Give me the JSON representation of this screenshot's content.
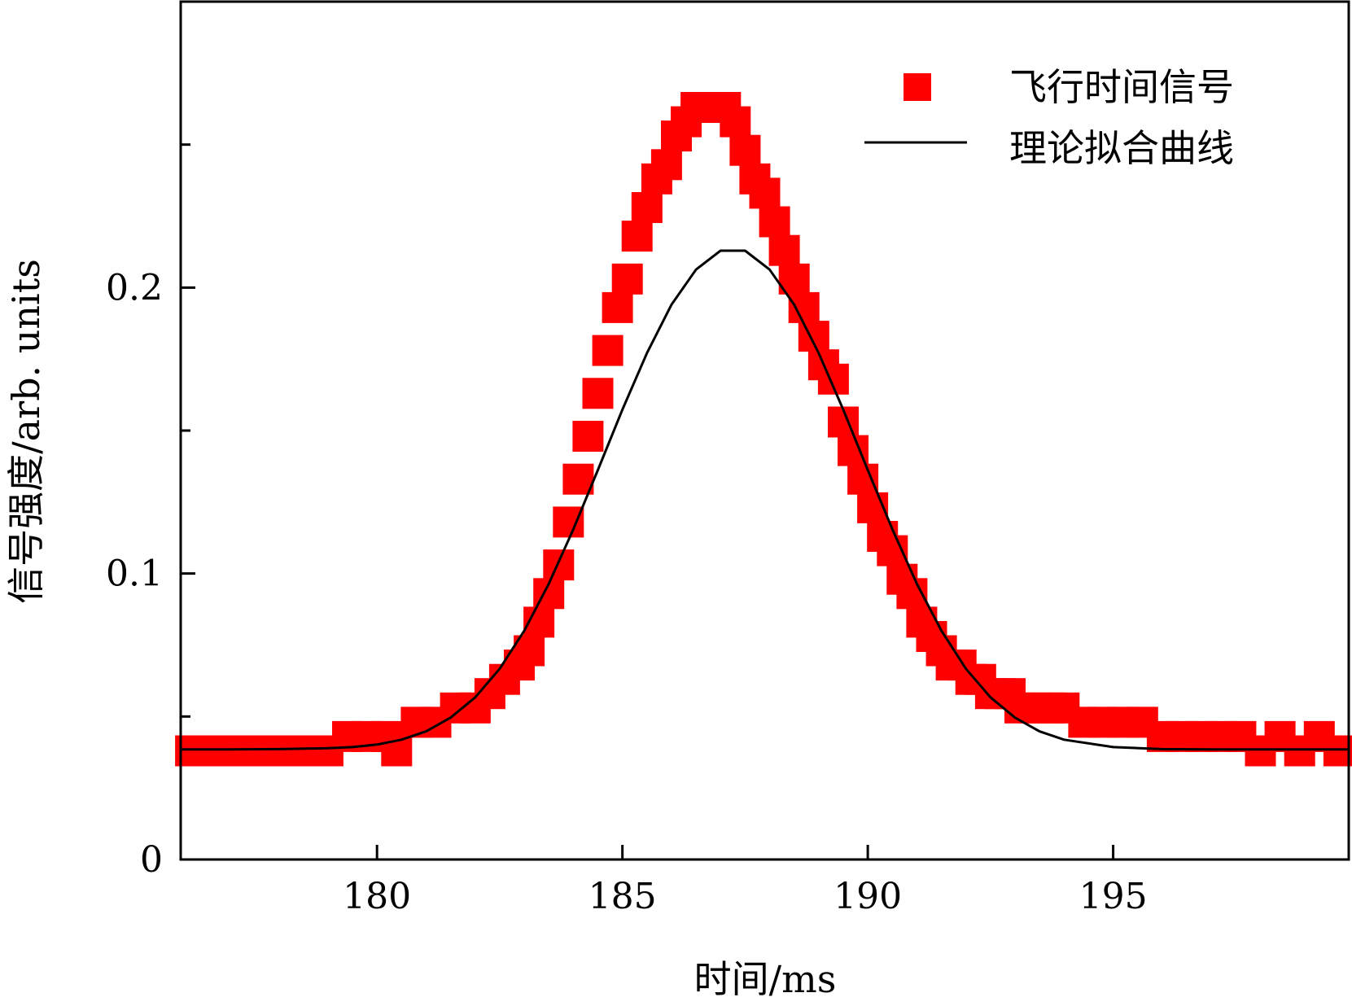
{
  "chart_data": {
    "type": "scatter",
    "xlabel": "时间/ms",
    "ylabel": "信号强度/arb. units",
    "xlim": [
      176,
      199.8
    ],
    "ylim": [
      0,
      0.3
    ],
    "xticks": [
      180,
      185,
      190,
      195
    ],
    "xtick_labels": [
      "180",
      "185",
      "190",
      "195"
    ],
    "x_minor_ticks": [],
    "yticks": [
      0,
      0.1,
      0.2
    ],
    "ytick_labels": [
      "0",
      "0.1",
      "0.2"
    ],
    "y_minor_ticks": [
      0.05,
      0.15,
      0.25
    ],
    "grid": false,
    "legend_position": "top-right",
    "colors": {
      "scatter": "#ff0000",
      "fit": "#000000",
      "frame": "#000000"
    },
    "series": [
      {
        "name": "飞行时间信号",
        "kind": "scatter",
        "marker": "square",
        "x": [
          176.2,
          176.6,
          177.0,
          177.4,
          177.8,
          178.2,
          178.6,
          179.0,
          179.4,
          179.8,
          180.2,
          180.4,
          180.8,
          181.2,
          181.6,
          182.0,
          182.3,
          182.6,
          182.9,
          183.1,
          183.3,
          183.5,
          183.7,
          183.9,
          184.1,
          184.3,
          184.5,
          184.7,
          184.9,
          185.1,
          185.3,
          185.5,
          185.7,
          185.9,
          186.1,
          186.3,
          186.5,
          186.7,
          186.9,
          187.1,
          187.3,
          187.5,
          187.7,
          187.9,
          188.1,
          188.3,
          188.5,
          188.7,
          188.9,
          189.1,
          189.3,
          189.5,
          189.7,
          189.9,
          190.1,
          190.3,
          190.5,
          190.7,
          190.9,
          191.1,
          191.3,
          191.5,
          191.7,
          191.9,
          192.1,
          192.3,
          192.5,
          192.7,
          192.9,
          193.1,
          193.4,
          193.7,
          194.0,
          194.4,
          194.8,
          195.2,
          195.6,
          196.0,
          196.4,
          196.8,
          197.2,
          197.6,
          198.0,
          198.4,
          198.8,
          199.2,
          199.6
        ],
        "y": [
          0.038,
          0.038,
          0.038,
          0.038,
          0.038,
          0.038,
          0.038,
          0.038,
          0.043,
          0.043,
          0.043,
          0.038,
          0.048,
          0.048,
          0.053,
          0.053,
          0.058,
          0.063,
          0.068,
          0.073,
          0.083,
          0.093,
          0.103,
          0.118,
          0.133,
          0.148,
          0.163,
          0.178,
          0.193,
          0.203,
          0.218,
          0.228,
          0.238,
          0.243,
          0.253,
          0.258,
          0.263,
          0.263,
          0.263,
          0.263,
          0.258,
          0.248,
          0.238,
          0.233,
          0.223,
          0.213,
          0.203,
          0.193,
          0.183,
          0.173,
          0.168,
          0.153,
          0.143,
          0.133,
          0.123,
          0.113,
          0.108,
          0.098,
          0.093,
          0.083,
          0.078,
          0.073,
          0.068,
          0.068,
          0.063,
          0.063,
          0.058,
          0.058,
          0.058,
          0.053,
          0.053,
          0.053,
          0.053,
          0.048,
          0.048,
          0.048,
          0.048,
          0.043,
          0.043,
          0.043,
          0.043,
          0.043,
          0.038,
          0.043,
          0.038,
          0.043,
          0.038
        ]
      },
      {
        "name": "理论拟合曲线",
        "kind": "line",
        "x": [
          176,
          177,
          178,
          179,
          179.5,
          180,
          180.5,
          181,
          181.5,
          182,
          182.5,
          183,
          183.5,
          184,
          184.5,
          185,
          185.5,
          186,
          186.5,
          187,
          187.5,
          188,
          188.5,
          189,
          189.5,
          190,
          190.5,
          191,
          191.5,
          192,
          192.5,
          193,
          193.5,
          194,
          195,
          196,
          197,
          198,
          199,
          199.8
        ],
        "y": [
          0.0385,
          0.0385,
          0.0386,
          0.0389,
          0.0393,
          0.0402,
          0.0419,
          0.0448,
          0.0496,
          0.0567,
          0.0667,
          0.08,
          0.0964,
          0.1155,
          0.1362,
          0.1573,
          0.1771,
          0.194,
          0.2063,
          0.2129,
          0.2129,
          0.2063,
          0.194,
          0.1771,
          0.1573,
          0.1362,
          0.1155,
          0.0964,
          0.08,
          0.0667,
          0.0567,
          0.0496,
          0.0448,
          0.0419,
          0.0393,
          0.0386,
          0.0385,
          0.0385,
          0.0385,
          0.0385
        ]
      }
    ]
  }
}
